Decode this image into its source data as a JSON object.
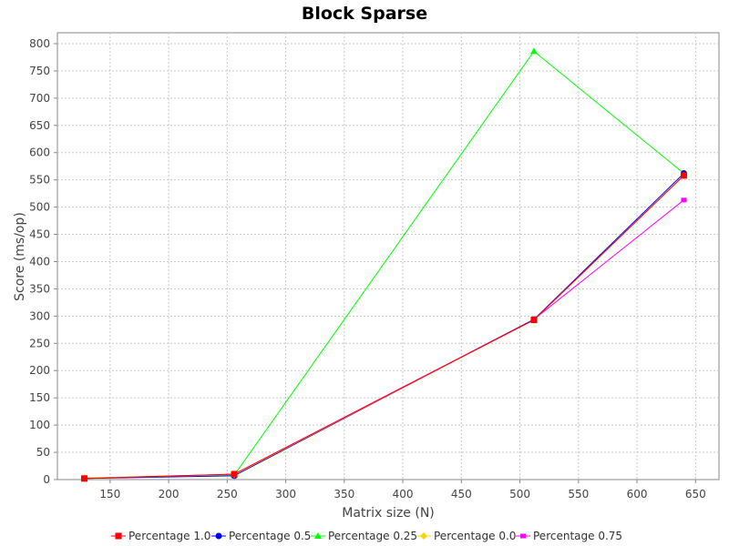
{
  "chart_data": {
    "type": "line",
    "title": "Block Sparse",
    "xlabel": "Matrix size (N)",
    "ylabel": "Score (ms/op)",
    "xlim": [
      105,
      670
    ],
    "ylim": [
      0,
      820
    ],
    "x_ticks": [
      150,
      200,
      250,
      300,
      350,
      400,
      450,
      500,
      550,
      600,
      650
    ],
    "y_ticks": [
      0,
      50,
      100,
      150,
      200,
      250,
      300,
      350,
      400,
      450,
      500,
      550,
      600,
      650,
      700,
      750,
      800
    ],
    "grid": true,
    "legend_position": "bottom",
    "series": [
      {
        "name": "Percentage 1.0",
        "color": "#ff0000",
        "marker": "square",
        "x": [
          128,
          256,
          512,
          640
        ],
        "y": [
          2,
          10,
          293,
          558
        ]
      },
      {
        "name": "Percentage 0.5",
        "color": "#0000ff",
        "marker": "circle",
        "x": [
          128,
          256,
          512,
          640
        ],
        "y": [
          2,
          7,
          294,
          562
        ]
      },
      {
        "name": "Percentage 0.25",
        "color": "#00ff00",
        "marker": "triangle",
        "x": [
          128,
          256,
          512,
          640
        ],
        "y": [
          2,
          8,
          786,
          562
        ]
      },
      {
        "name": "Percentage 0.0",
        "color": "#ffd700",
        "marker": "diamond",
        "x": [
          128,
          256,
          512,
          640
        ],
        "y": [
          3,
          9,
          293,
          558
        ]
      },
      {
        "name": "Percentage 0.75",
        "color": "#ff00ff",
        "marker": "square-small",
        "x": [
          128,
          256,
          512,
          640
        ],
        "y": [
          2,
          10,
          294,
          513
        ]
      }
    ]
  }
}
